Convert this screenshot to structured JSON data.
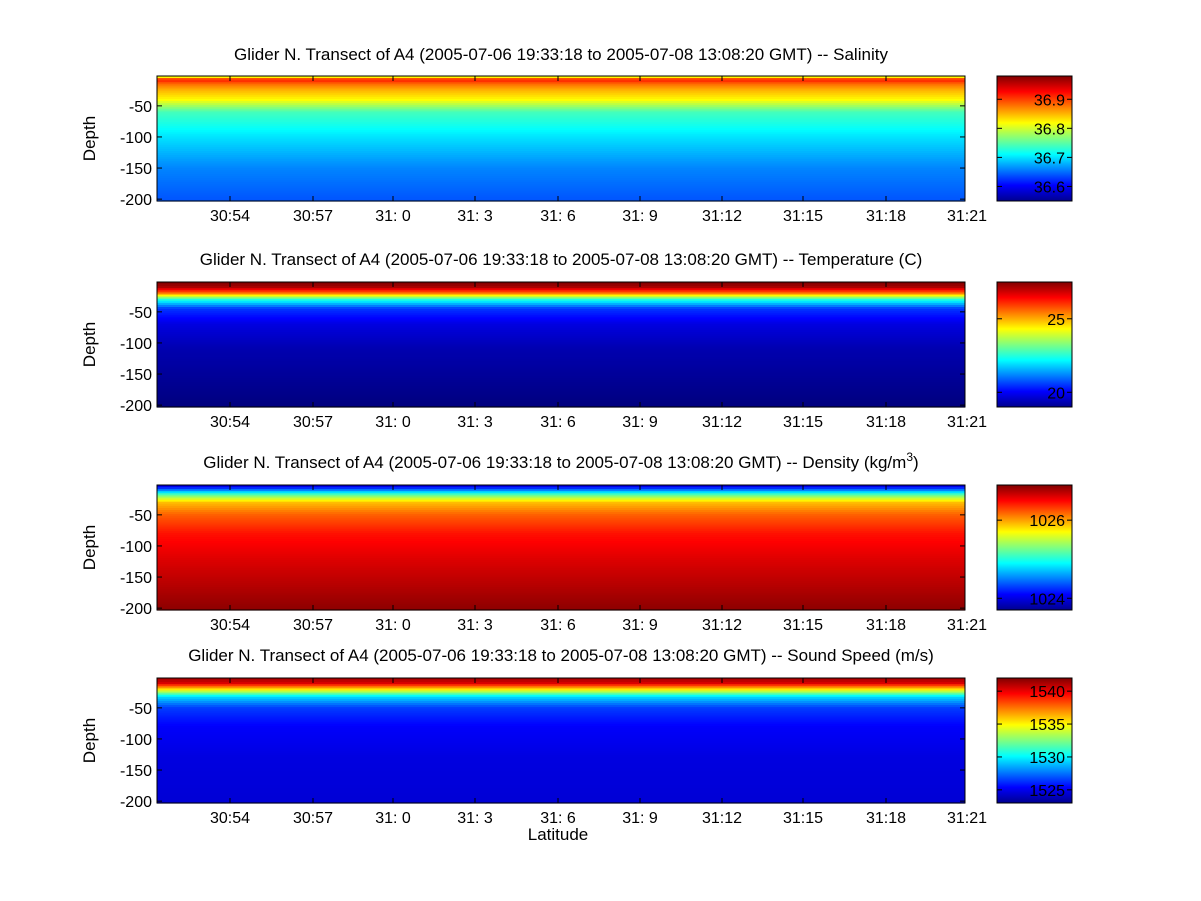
{
  "figure": {
    "xlabel": "Latitude",
    "ylabel": "Depth"
  },
  "chart_data": [
    {
      "type": "heatmap",
      "title": "Glider N. Transect of A4 (2005-07-06 19:33:18 to 2005-07-08 13:08:20 GMT) -- Salinity",
      "title_main": "Glider N. Transect of A4 (2005-07-06 19:33:18 to 2005-07-08 13:08:20 GMT) -- Salinity",
      "ylabel": "Depth",
      "xticks": [
        "30:54",
        "30:57",
        "31: 0",
        "31: 3",
        "31: 6",
        "31: 9",
        "31:12",
        "31:15",
        "31:18",
        "31:21"
      ],
      "yticks": [
        "-50",
        "-100",
        "-150",
        "-200"
      ],
      "ytick_values": [
        -50,
        -100,
        -150,
        -200
      ],
      "ylim": [
        -203,
        -2
      ],
      "colorbar": {
        "ticks": [
          "36.9",
          "36.8",
          "36.7",
          "36.6"
        ],
        "tick_values": [
          36.9,
          36.8,
          36.7,
          36.6
        ],
        "range": [
          36.55,
          36.98
        ]
      },
      "profile": {
        "depth": [
          0,
          -8,
          -15,
          -25,
          -40,
          -60,
          -100,
          -150,
          -200
        ],
        "values": [
          36.74,
          36.92,
          36.88,
          36.85,
          36.82,
          36.74,
          36.7,
          36.66,
          36.64
        ]
      }
    },
    {
      "type": "heatmap",
      "title": "Glider N. Transect of A4 (2005-07-06 19:33:18 to 2005-07-08 13:08:20 GMT) -- Temperature (C)",
      "title_main": "Glider N. Transect of A4 (2005-07-06 19:33:18 to 2005-07-08 13:08:20 GMT) -- Temperature (C)",
      "ylabel": "Depth",
      "xticks": [
        "30:54",
        "30:57",
        "31: 0",
        "31: 3",
        "31: 6",
        "31: 9",
        "31:12",
        "31:15",
        "31:18",
        "31:21"
      ],
      "yticks": [
        "-50",
        "-100",
        "-150",
        "-200"
      ],
      "ytick_values": [
        -50,
        -100,
        -150,
        -200
      ],
      "ylim": [
        -203,
        -2
      ],
      "colorbar": {
        "ticks": [
          "25",
          "20"
        ],
        "tick_values": [
          25,
          20
        ],
        "range": [
          19,
          27.5
        ]
      },
      "profile": {
        "depth": [
          0,
          -10,
          -20,
          -30,
          -45,
          -70,
          -110,
          -200
        ],
        "values": [
          27.6,
          27.2,
          25.5,
          22.5,
          20.5,
          19.8,
          19.4,
          19.0
        ]
      }
    },
    {
      "type": "heatmap",
      "title": "Glider N. Transect of A4 (2005-07-06 19:33:18 to 2005-07-08 13:08:20 GMT) -- Density (kg/m3)",
      "title_main": "Glider N. Transect of A4 (2005-07-06 19:33:18 to 2005-07-08 13:08:20 GMT) -- Density (kg/m",
      "title_sup": "3",
      "title_end": ")",
      "ylabel": "Depth",
      "xticks": [
        "30:54",
        "30:57",
        "31: 0",
        "31: 3",
        "31: 6",
        "31: 9",
        "31:12",
        "31:15",
        "31:18",
        "31:21"
      ],
      "yticks": [
        "-50",
        "-100",
        "-150",
        "-200"
      ],
      "ytick_values": [
        -50,
        -100,
        -150,
        -200
      ],
      "ylim": [
        -203,
        -2
      ],
      "colorbar": {
        "ticks": [
          "1026",
          "1024"
        ],
        "tick_values": [
          1026,
          1024
        ],
        "range": [
          1023.7,
          1026.9
        ]
      },
      "profile": {
        "depth": [
          0,
          -8,
          -18,
          -30,
          -50,
          -80,
          -120,
          -170,
          -200
        ],
        "values": [
          1023.8,
          1024.3,
          1025.2,
          1025.9,
          1026.2,
          1026.45,
          1026.6,
          1026.75,
          1026.85
        ]
      }
    },
    {
      "type": "heatmap",
      "title": "Glider N. Transect of A4 (2005-07-06 19:33:18 to 2005-07-08 13:08:20 GMT) -- Sound Speed (m/s)",
      "title_main": "Glider N. Transect of A4 (2005-07-06 19:33:18 to 2005-07-08 13:08:20 GMT) -- Sound Speed (m/s)",
      "ylabel": "Depth",
      "xticks": [
        "30:54",
        "30:57",
        "31: 0",
        "31: 3",
        "31: 6",
        "31: 9",
        "31:12",
        "31:15",
        "31:18",
        "31:21"
      ],
      "yticks": [
        "-50",
        "-100",
        "-150",
        "-200"
      ],
      "ytick_values": [
        -50,
        -100,
        -150,
        -200
      ],
      "ylim": [
        -203,
        -2
      ],
      "colorbar": {
        "ticks": [
          "1540",
          "1535",
          "1530",
          "1525"
        ],
        "tick_values": [
          1540,
          1535,
          1530,
          1525
        ],
        "range": [
          1523,
          1542
        ]
      },
      "profile": {
        "depth": [
          0,
          -10,
          -20,
          -32,
          -50,
          -80,
          -130,
          -200
        ],
        "values": [
          1541.5,
          1540.5,
          1535.5,
          1529.5,
          1526.5,
          1525.3,
          1524.8,
          1524.6
        ]
      }
    }
  ]
}
